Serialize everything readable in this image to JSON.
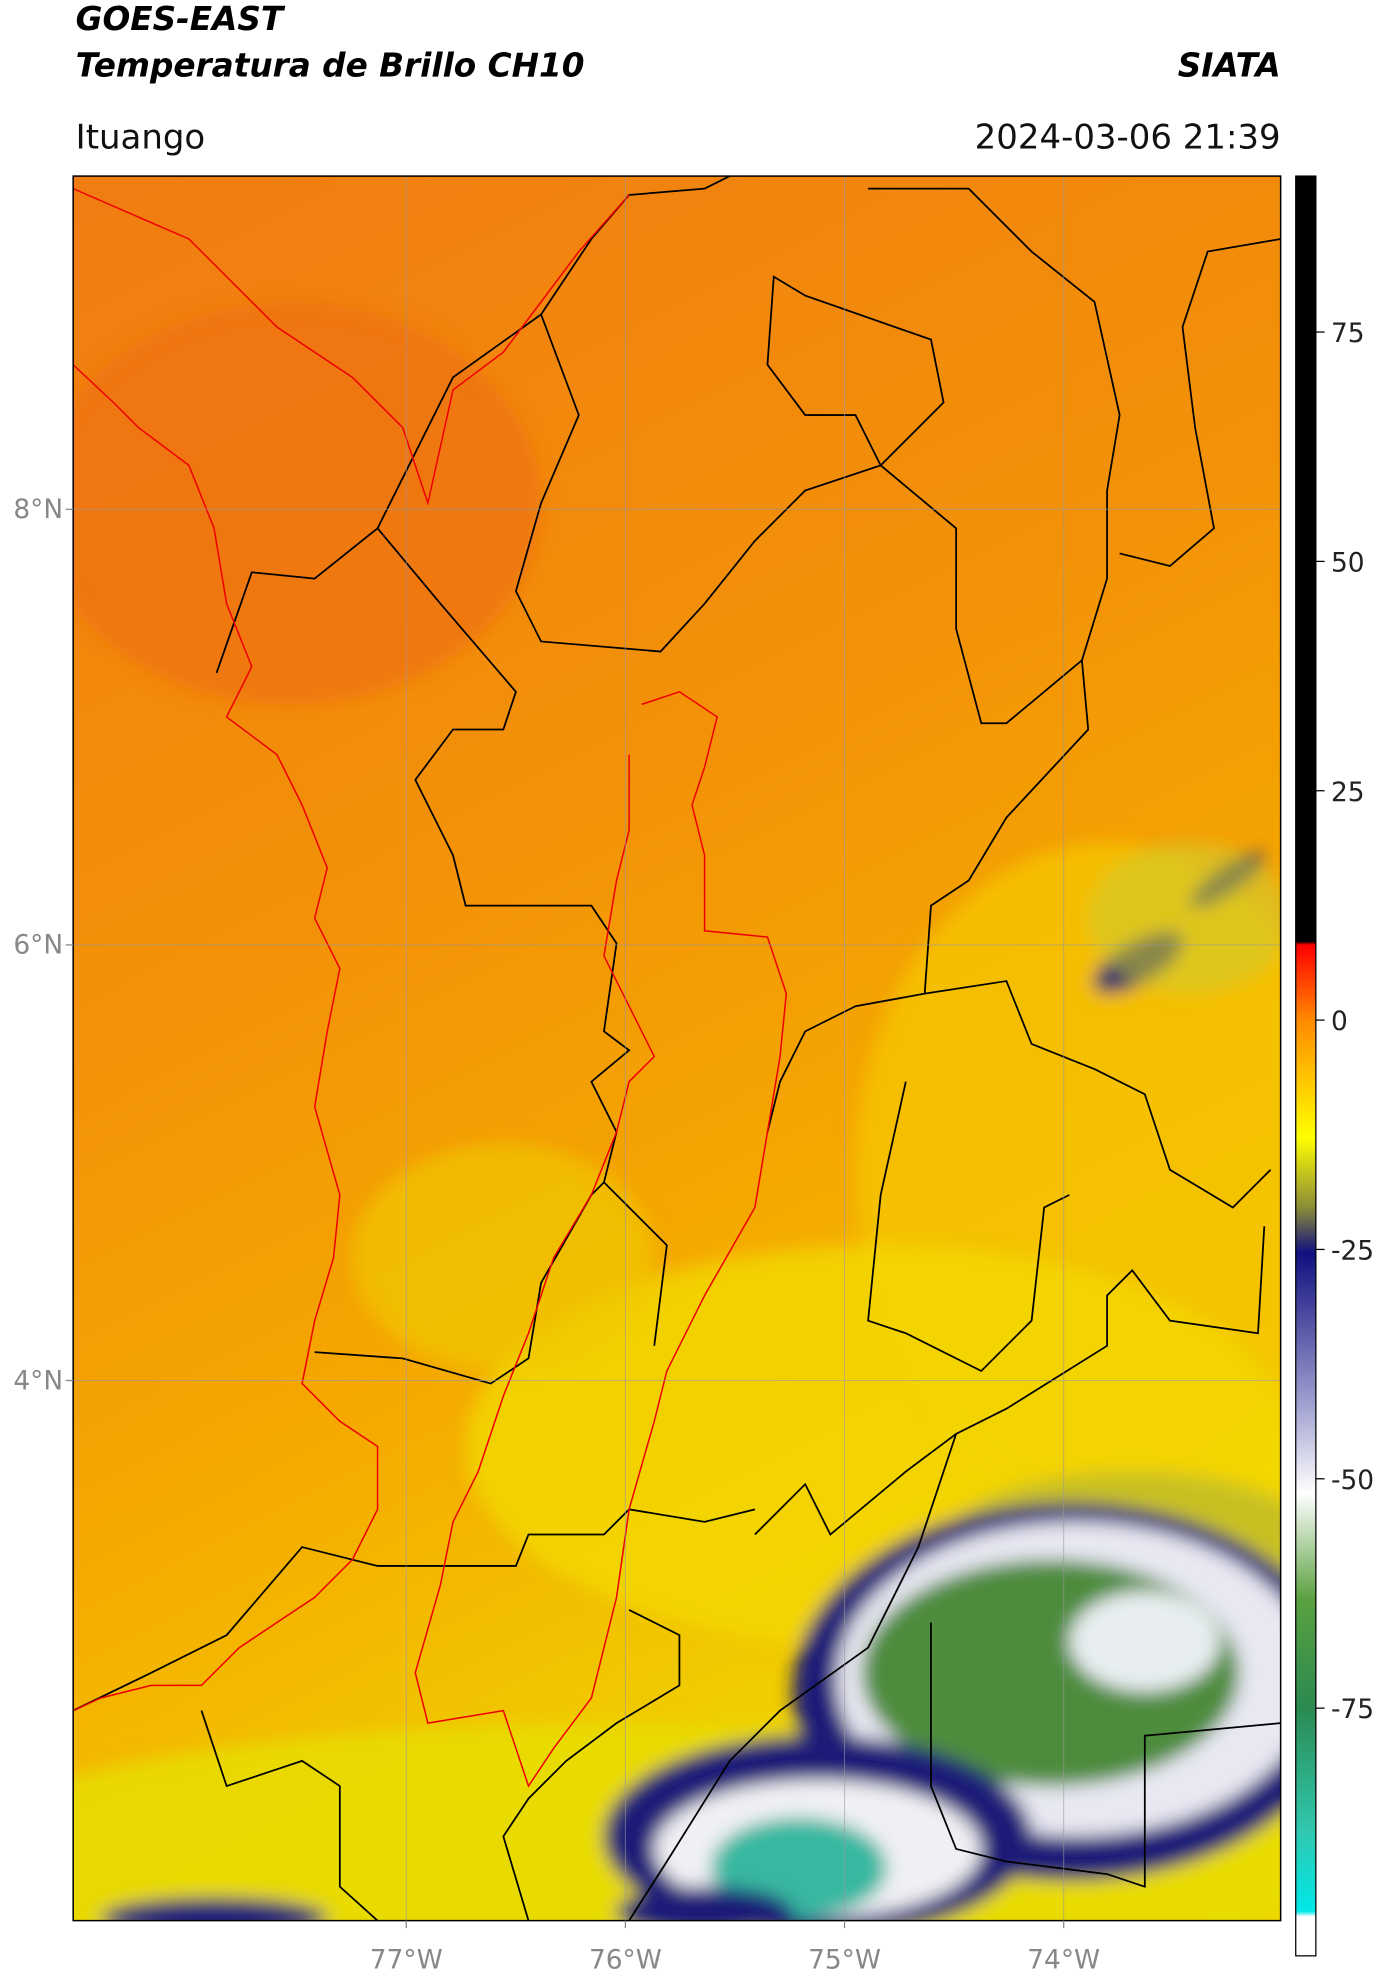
{
  "header": {
    "title_line1": "GOES-EAST",
    "title_line2": "Temperatura de Brillo CH10",
    "agency": "SIATA",
    "location": "Ituango",
    "datetime": "2024-03-06 21:39"
  },
  "map": {
    "xlim": [
      -78.52,
      -73.01
    ],
    "ylim": [
      1.52,
      9.53
    ],
    "xticks": [
      {
        "value": -77,
        "label": "77°W"
      },
      {
        "value": -76,
        "label": "76°W"
      },
      {
        "value": -75,
        "label": "75°W"
      },
      {
        "value": -74,
        "label": "74°W"
      }
    ],
    "yticks": [
      {
        "value": 4,
        "label": "4°N"
      },
      {
        "value": 6,
        "label": "6°N"
      },
      {
        "value": 8,
        "label": "8°N"
      }
    ],
    "grid": true,
    "colorbar": {
      "range": [
        -102,
        92
      ],
      "ticks": [
        -75,
        -50,
        -25,
        0,
        25,
        50,
        75
      ]
    }
  }
}
